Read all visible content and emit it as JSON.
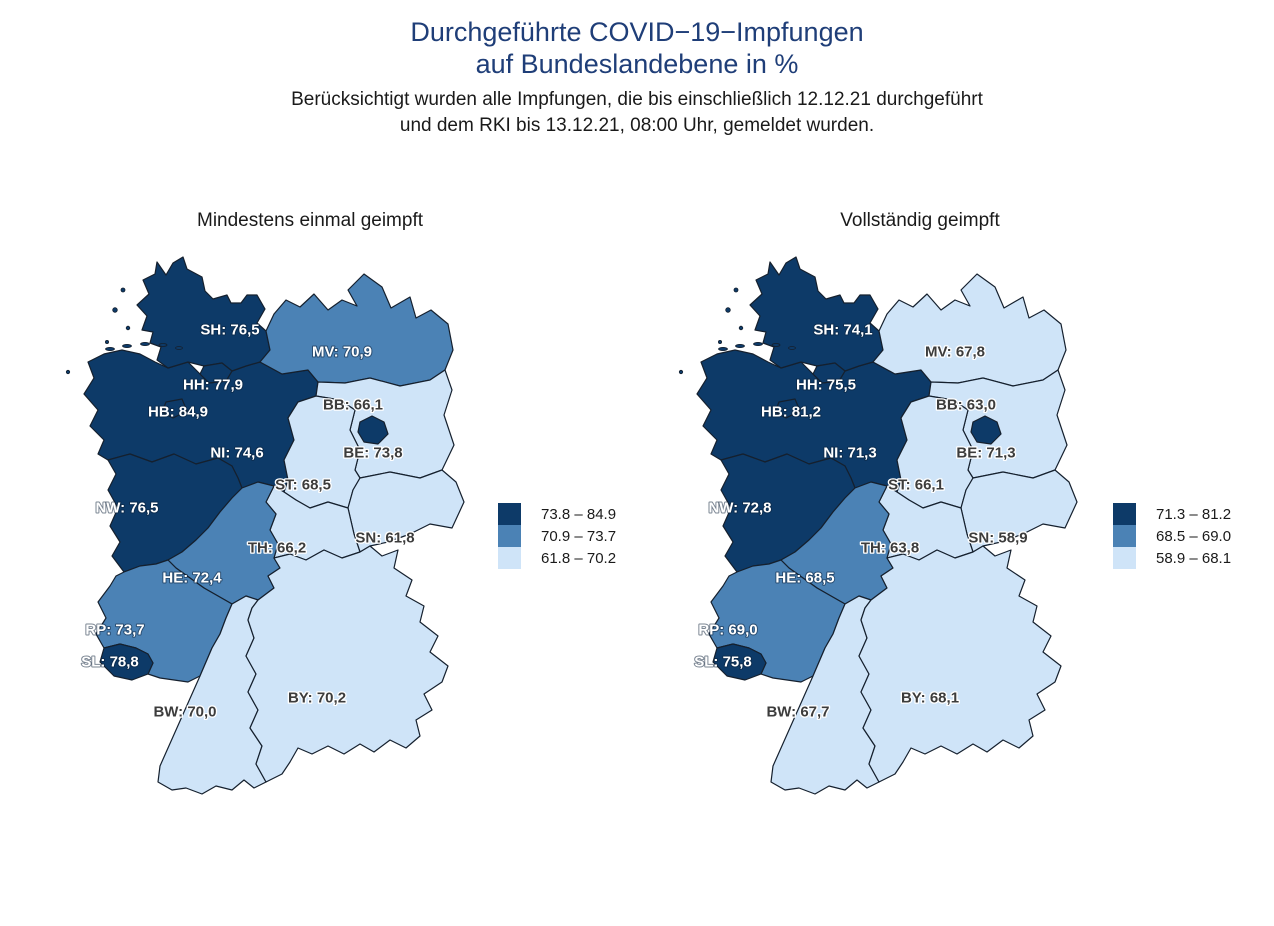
{
  "header": {
    "title_line1": "Durchgeführte COVID−19−Impfungen",
    "title_line2": "auf Bundeslandebene in %",
    "subtitle_line1": "Berücksichtigt wurden alle Impfungen, die bis einschließlich 12.12.21 durchgeführt",
    "subtitle_line2": "und dem RKI bis 13.12.21, 08:00 Uhr, gemeldet wurden."
  },
  "colors": {
    "dark": "#0d3a68",
    "medium": "#4b82b5",
    "light": "#cfe4f8",
    "outline": "#15202e",
    "title": "#1f3e78",
    "label_on_light": "#3c3c3c",
    "label_on_dark": "#ffffff",
    "background": "#ffffff"
  },
  "chart_data": {
    "type": "choropleth",
    "region": "Germany federal states",
    "unit": "%",
    "maps": [
      {
        "title": "Mindestens einmal geimpft",
        "values": {
          "SH": 76.5,
          "MV": 70.9,
          "HH": 77.9,
          "HB": 84.9,
          "NI": 74.6,
          "BB": 66.1,
          "BE": 73.8,
          "ST": 68.5,
          "NW": 76.5,
          "SN": 61.8,
          "TH": 66.2,
          "HE": 72.4,
          "RP": 73.7,
          "SL": 78.8,
          "BW": 70.0,
          "BY": 70.2
        },
        "labels": {
          "SH": "SH: 76,5",
          "MV": "MV: 70,9",
          "HH": "HH: 77,9",
          "HB": "HB: 84,9",
          "NI": "NI: 74,6",
          "BB": "BB: 66,1",
          "BE": "BE: 73,8",
          "ST": "ST: 68,5",
          "NW": "NW: 76,5",
          "SN": "SN: 61,8",
          "TH": "TH: 66,2",
          "HE": "HE: 72,4",
          "RP": "RP: 73,7",
          "SL": "SL: 78,8",
          "BW": "BW: 70,0",
          "BY": "BY: 70,2"
        },
        "classes": {
          "SH": "dark",
          "MV": "medium",
          "HH": "dark",
          "HB": "dark",
          "NI": "dark",
          "BB": "light",
          "BE": "dark",
          "ST": "light",
          "NW": "dark",
          "SN": "light",
          "TH": "light",
          "HE": "medium",
          "RP": "medium",
          "SL": "dark",
          "BW": "light",
          "BY": "light"
        },
        "legend": [
          {
            "color": "dark",
            "label": "73.8 – 84.9"
          },
          {
            "color": "medium",
            "label": "70.9 – 73.7"
          },
          {
            "color": "light",
            "label": "61.8 – 70.2"
          }
        ]
      },
      {
        "title": "Vollständig geimpft",
        "values": {
          "SH": 74.1,
          "MV": 67.8,
          "HH": 75.5,
          "HB": 81.2,
          "NI": 71.3,
          "BB": 63.0,
          "BE": 71.3,
          "ST": 66.1,
          "NW": 72.8,
          "SN": 58.9,
          "TH": 63.8,
          "HE": 68.5,
          "RP": 69.0,
          "SL": 75.8,
          "BW": 67.7,
          "BY": 68.1
        },
        "labels": {
          "SH": "SH: 74,1",
          "MV": "MV: 67,8",
          "HH": "HH: 75,5",
          "HB": "HB: 81,2",
          "NI": "NI: 71,3",
          "BB": "BB: 63,0",
          "BE": "BE: 71,3",
          "ST": "ST: 66,1",
          "NW": "NW: 72,8",
          "SN": "SN: 58,9",
          "TH": "TH: 63,8",
          "HE": "HE: 68,5",
          "RP": "RP: 69,0",
          "SL": "SL: 75,8",
          "BW": "BW: 67,7",
          "BY": "BY: 68,1"
        },
        "classes": {
          "SH": "dark",
          "MV": "light",
          "HH": "dark",
          "HB": "dark",
          "NI": "dark",
          "BB": "light",
          "BE": "dark",
          "ST": "light",
          "NW": "dark",
          "SN": "light",
          "TH": "light",
          "HE": "medium",
          "RP": "medium",
          "SL": "dark",
          "BW": "light",
          "BY": "light"
        },
        "legend": [
          {
            "color": "dark",
            "label": "71.3 – 81.2"
          },
          {
            "color": "medium",
            "label": "68.5 – 69.0"
          },
          {
            "color": "light",
            "label": "58.9 – 68.1"
          }
        ]
      }
    ]
  }
}
